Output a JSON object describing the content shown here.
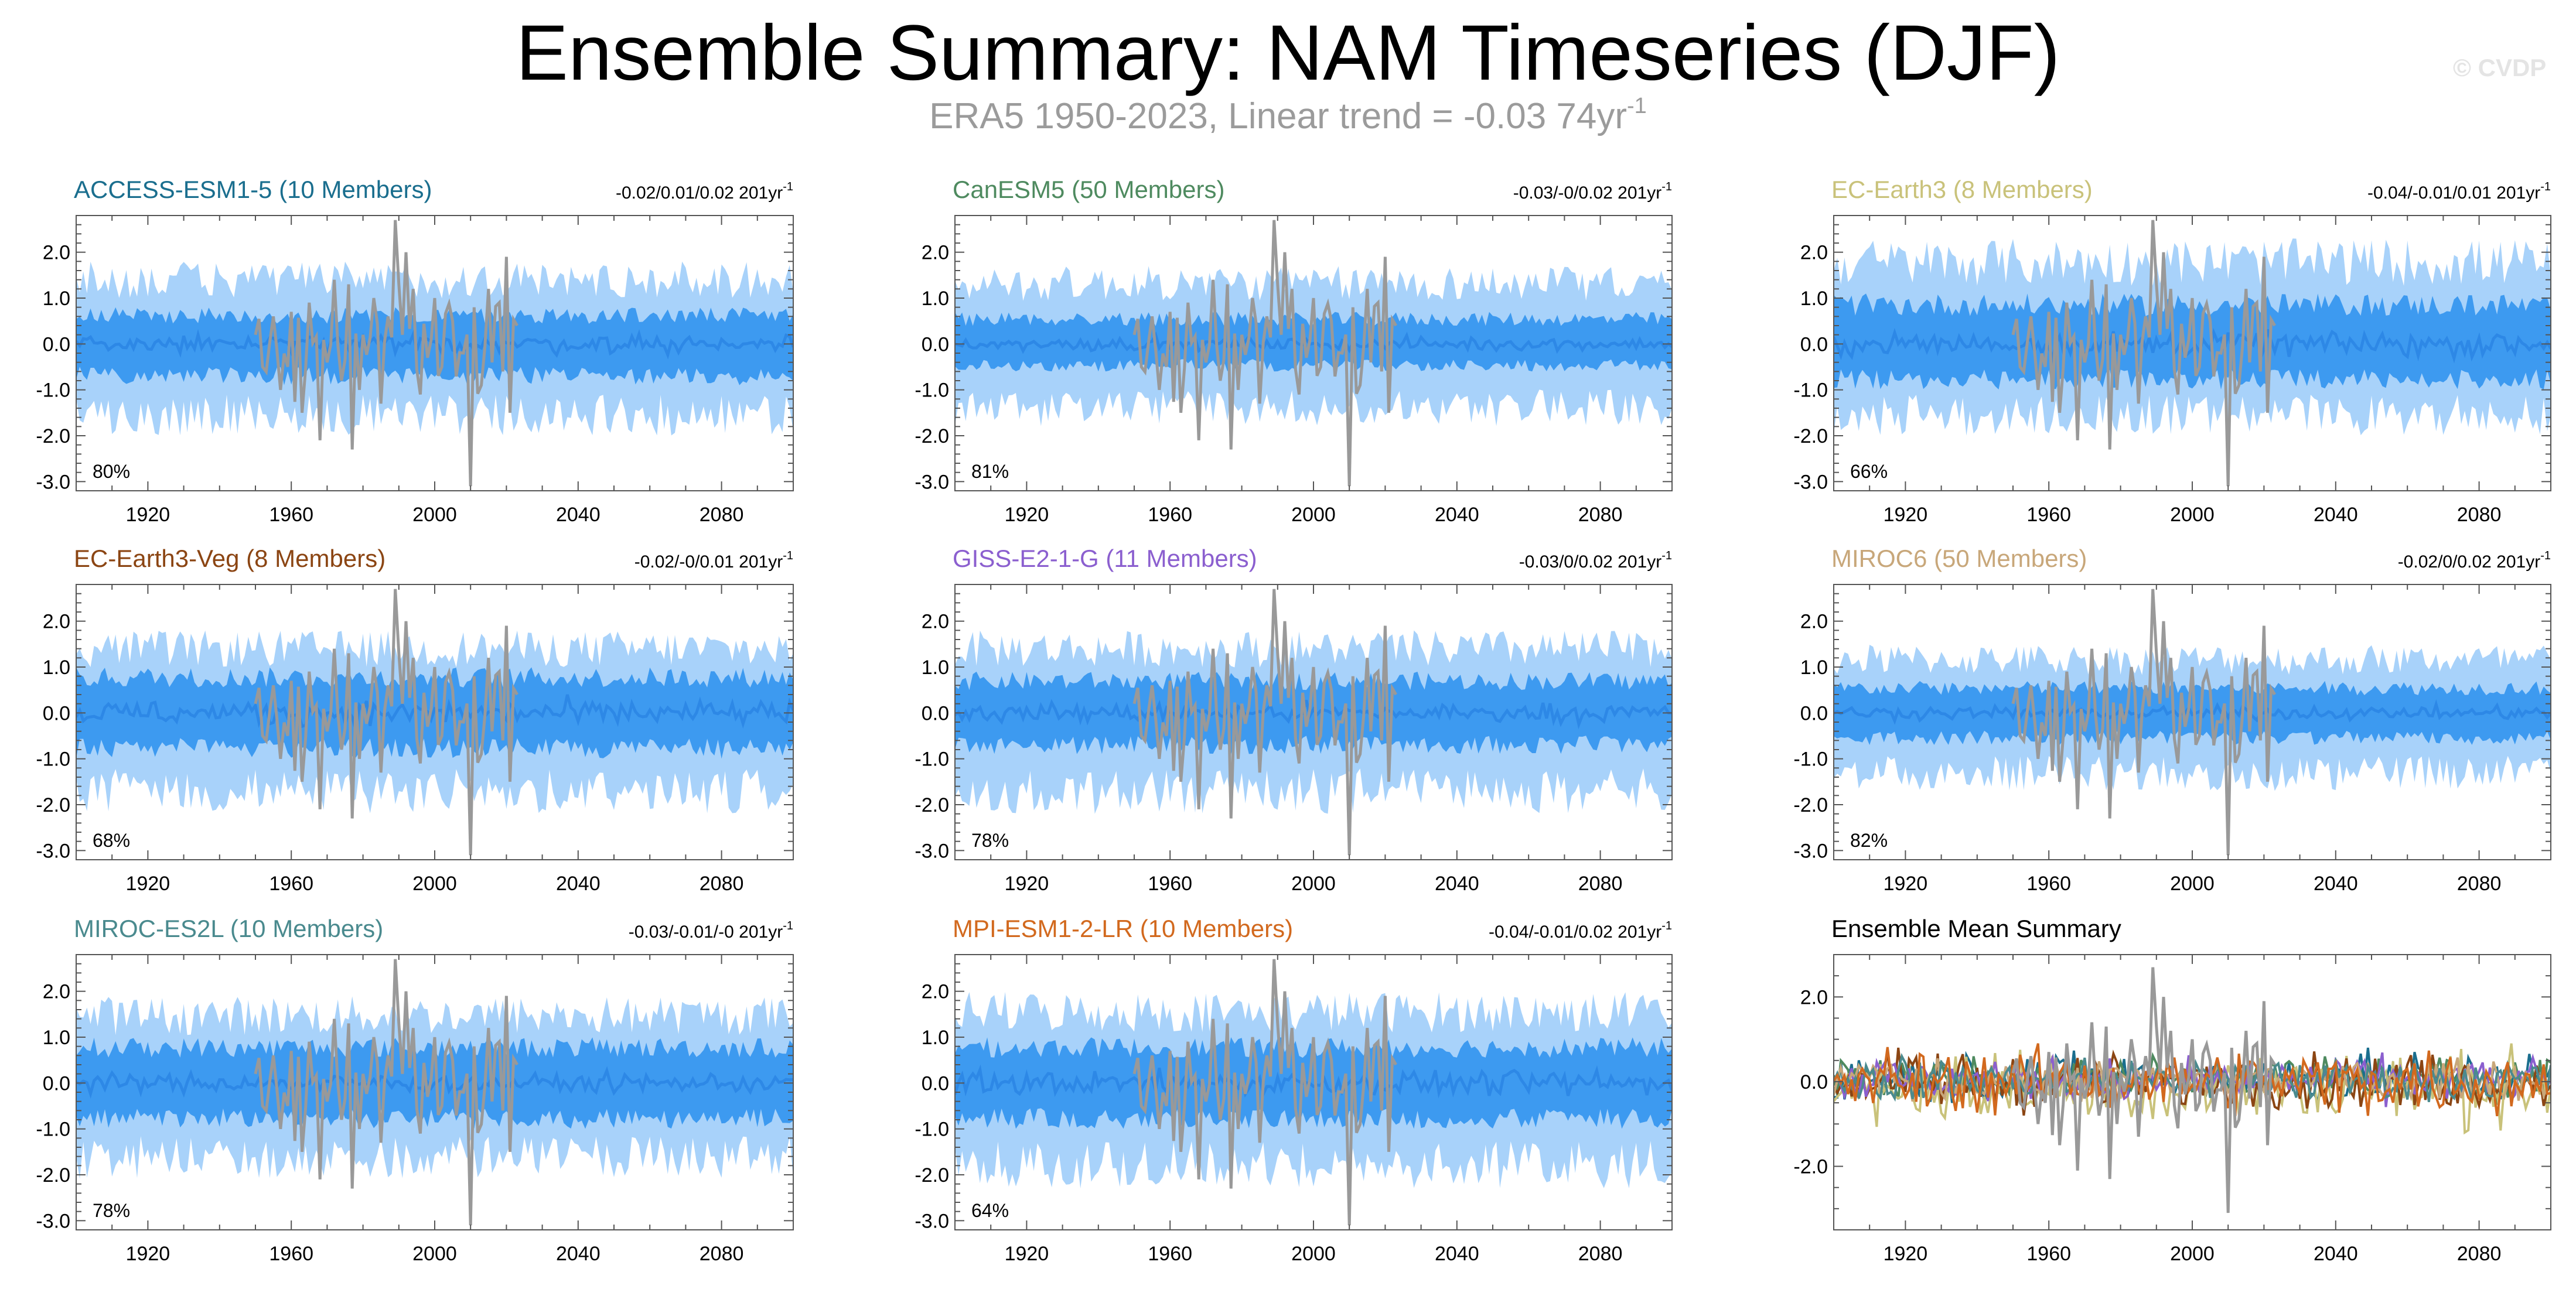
{
  "header": {
    "title": "Ensemble Summary: NAM Timeseries (DJF)",
    "subtitle_main": "ERA5 1950-2023, Linear trend = -0.03 74yr",
    "subtitle_sup": "-1",
    "watermark": "© CVDP"
  },
  "colors": {
    "outer_band": "#a8d2fa",
    "inner_band": "#3d9af0",
    "ensemble_mean_line": "#2d88e6",
    "observations": "#999999"
  },
  "chart_data": [
    {
      "type": "area",
      "title": "ACCESS-ESM1-5 (10 Members)",
      "title_color": "#1a6e8e",
      "trend_text": "-0.02/0.01/0.02 201yr",
      "trend_sup": "-1",
      "percent_label": "80%",
      "xlim": [
        1900,
        2100
      ],
      "ylim": [
        -3.2,
        2.8
      ],
      "x_ticks": [
        1920,
        1960,
        2000,
        2040,
        2080
      ],
      "y_ticks": [
        2.0,
        1.0,
        0.0,
        -1.0,
        -2.0,
        -3.0
      ],
      "y_tick_labels": [
        "2.0",
        "1.0",
        "0.0",
        "-1.0",
        "-2.0",
        "-3.0"
      ],
      "series": [
        {
          "name": "",
          "role": "percentile_range_outer",
          "x_range": [
            1900,
            2100
          ],
          "y_range": [
            -2.0,
            1.8
          ]
        },
        {
          "name": "",
          "role": "percentile_range_inner",
          "x_range": [
            1900,
            2100
          ],
          "y_range": [
            -0.9,
            0.8
          ]
        },
        {
          "name": "",
          "role": "ensemble_mean",
          "x_range": [
            1900,
            2100
          ],
          "y_range": [
            -0.3,
            0.3
          ]
        },
        {
          "name": "",
          "role": "observations",
          "x_range": [
            1950,
            2023
          ],
          "y_range": [
            -3.1,
            2.7
          ]
        }
      ]
    },
    {
      "type": "area",
      "title": "CanESM5 (50 Members)",
      "title_color": "#4e8a5f",
      "trend_text": "-0.03/-0/0.02 201yr",
      "trend_sup": "-1",
      "percent_label": "81%",
      "xlim": [
        1900,
        2100
      ],
      "ylim": [
        -3.2,
        2.8
      ],
      "x_ticks": [
        1920,
        1960,
        2000,
        2040,
        2080
      ],
      "y_ticks": [
        2.0,
        1.0,
        0.0,
        -1.0,
        -2.0,
        -3.0
      ],
      "y_tick_labels": [
        "2.0",
        "1.0",
        "0.0",
        "-1.0",
        "-2.0",
        "-3.0"
      ],
      "series": [
        {
          "name": "",
          "role": "percentile_range_outer",
          "x_range": [
            1900,
            2100
          ],
          "y_range": [
            -1.8,
            1.7
          ]
        },
        {
          "name": "",
          "role": "percentile_range_inner",
          "x_range": [
            1900,
            2100
          ],
          "y_range": [
            -0.6,
            0.7
          ]
        },
        {
          "name": "",
          "role": "ensemble_mean",
          "x_range": [
            1900,
            2100
          ],
          "y_range": [
            -0.2,
            0.2
          ]
        },
        {
          "name": "",
          "role": "observations",
          "x_range": [
            1950,
            2023
          ],
          "y_range": [
            -3.1,
            2.7
          ]
        }
      ]
    },
    {
      "type": "area",
      "title": "EC-Earth3 (8 Members)",
      "title_color": "#c9c27a",
      "trend_text": "-0.04/-0.01/0.01 201yr",
      "trend_sup": "-1",
      "percent_label": "66%",
      "xlim": [
        1900,
        2100
      ],
      "ylim": [
        -3.2,
        2.8
      ],
      "x_ticks": [
        1920,
        1960,
        2000,
        2040,
        2080
      ],
      "y_ticks": [
        2.0,
        1.0,
        0.0,
        -1.0,
        -2.0,
        -3.0
      ],
      "y_tick_labels": [
        "2.0",
        "1.0",
        "0.0",
        "-1.0",
        "-2.0",
        "-3.0"
      ],
      "series": [
        {
          "name": "",
          "role": "percentile_range_outer",
          "x_range": [
            1900,
            2100
          ],
          "y_range": [
            -2.0,
            2.3
          ]
        },
        {
          "name": "",
          "role": "percentile_range_inner",
          "x_range": [
            1900,
            2100
          ],
          "y_range": [
            -1.0,
            1.1
          ]
        },
        {
          "name": "",
          "role": "ensemble_mean",
          "x_range": [
            1900,
            2100
          ],
          "y_range": [
            -0.4,
            0.4
          ]
        },
        {
          "name": "",
          "role": "observations",
          "x_range": [
            1950,
            2023
          ],
          "y_range": [
            -3.1,
            2.7
          ]
        }
      ]
    },
    {
      "type": "area",
      "title": "EC-Earth3-Veg (8 Members)",
      "title_color": "#8b4513",
      "trend_text": "-0.02/-0/0.01 201yr",
      "trend_sup": "-1",
      "percent_label": "68%",
      "xlim": [
        1900,
        2100
      ],
      "ylim": [
        -3.2,
        2.8
      ],
      "x_ticks": [
        1920,
        1960,
        2000,
        2040,
        2080
      ],
      "y_ticks": [
        2.0,
        1.0,
        0.0,
        -1.0,
        -2.0,
        -3.0
      ],
      "y_tick_labels": [
        "2.0",
        "1.0",
        "0.0",
        "-1.0",
        "-2.0",
        "-3.0"
      ],
      "series": [
        {
          "name": "",
          "role": "percentile_range_outer",
          "x_range": [
            1900,
            2100
          ],
          "y_range": [
            -2.2,
            1.8
          ]
        },
        {
          "name": "",
          "role": "percentile_range_inner",
          "x_range": [
            1900,
            2100
          ],
          "y_range": [
            -1.0,
            1.0
          ]
        },
        {
          "name": "",
          "role": "ensemble_mean",
          "x_range": [
            1900,
            2100
          ],
          "y_range": [
            -0.4,
            0.4
          ]
        },
        {
          "name": "",
          "role": "observations",
          "x_range": [
            1950,
            2023
          ],
          "y_range": [
            -3.1,
            2.7
          ]
        }
      ]
    },
    {
      "type": "area",
      "title": "GISS-E2-1-G (11 Members)",
      "title_color": "#8b5fcf",
      "trend_text": "-0.03/0/0.02 201yr",
      "trend_sup": "-1",
      "percent_label": "78%",
      "xlim": [
        1900,
        2100
      ],
      "ylim": [
        -3.2,
        2.8
      ],
      "x_ticks": [
        1920,
        1960,
        2000,
        2040,
        2080
      ],
      "y_ticks": [
        2.0,
        1.0,
        0.0,
        -1.0,
        -2.0,
        -3.0
      ],
      "y_tick_labels": [
        "2.0",
        "1.0",
        "0.0",
        "-1.0",
        "-2.0",
        "-3.0"
      ],
      "series": [
        {
          "name": "",
          "role": "percentile_range_outer",
          "x_range": [
            1900,
            2100
          ],
          "y_range": [
            -2.2,
            1.8
          ]
        },
        {
          "name": "",
          "role": "percentile_range_inner",
          "x_range": [
            1900,
            2100
          ],
          "y_range": [
            -0.9,
            0.9
          ]
        },
        {
          "name": "",
          "role": "ensemble_mean",
          "x_range": [
            1900,
            2100
          ],
          "y_range": [
            -0.3,
            0.3
          ]
        },
        {
          "name": "",
          "role": "observations",
          "x_range": [
            1950,
            2023
          ],
          "y_range": [
            -3.1,
            2.7
          ]
        }
      ]
    },
    {
      "type": "area",
      "title": "MIROC6 (50 Members)",
      "title_color": "#c8a77a",
      "trend_text": "-0.02/0/0.02 201yr",
      "trend_sup": "-1",
      "percent_label": "82%",
      "xlim": [
        1900,
        2100
      ],
      "ylim": [
        -3.2,
        2.8
      ],
      "x_ticks": [
        1920,
        1960,
        2000,
        2040,
        2080
      ],
      "y_ticks": [
        2.0,
        1.0,
        0.0,
        -1.0,
        -2.0,
        -3.0
      ],
      "y_tick_labels": [
        "2.0",
        "1.0",
        "0.0",
        "-1.0",
        "-2.0",
        "-3.0"
      ],
      "series": [
        {
          "name": "",
          "role": "percentile_range_outer",
          "x_range": [
            1900,
            2100
          ],
          "y_range": [
            -1.7,
            1.5
          ]
        },
        {
          "name": "",
          "role": "percentile_range_inner",
          "x_range": [
            1900,
            2100
          ],
          "y_range": [
            -0.7,
            0.7
          ]
        },
        {
          "name": "",
          "role": "ensemble_mean",
          "x_range": [
            1900,
            2100
          ],
          "y_range": [
            -0.2,
            0.2
          ]
        },
        {
          "name": "",
          "role": "observations",
          "x_range": [
            1950,
            2023
          ],
          "y_range": [
            -3.1,
            2.7
          ]
        }
      ]
    },
    {
      "type": "area",
      "title": "MIROC-ES2L (10 Members)",
      "title_color": "#4a8a8e",
      "trend_text": "-0.03/-0.01/-0 201yr",
      "trend_sup": "-1",
      "percent_label": "78%",
      "xlim": [
        1900,
        2100
      ],
      "ylim": [
        -3.2,
        2.8
      ],
      "x_ticks": [
        1920,
        1960,
        2000,
        2040,
        2080
      ],
      "y_ticks": [
        2.0,
        1.0,
        0.0,
        -1.0,
        -2.0,
        -3.0
      ],
      "y_tick_labels": [
        "2.0",
        "1.0",
        "0.0",
        "-1.0",
        "-2.0",
        "-3.0"
      ],
      "series": [
        {
          "name": "",
          "role": "percentile_range_outer",
          "x_range": [
            1900,
            2100
          ],
          "y_range": [
            -2.1,
            1.9
          ]
        },
        {
          "name": "",
          "role": "percentile_range_inner",
          "x_range": [
            1900,
            2100
          ],
          "y_range": [
            -1.0,
            1.0
          ]
        },
        {
          "name": "",
          "role": "ensemble_mean",
          "x_range": [
            1900,
            2100
          ],
          "y_range": [
            -0.3,
            0.3
          ]
        },
        {
          "name": "",
          "role": "observations",
          "x_range": [
            1950,
            2023
          ],
          "y_range": [
            -3.1,
            2.7
          ]
        }
      ]
    },
    {
      "type": "area",
      "title": "MPI-ESM1-2-LR (10 Members)",
      "title_color": "#d2691e",
      "trend_text": "-0.04/-0.01/0.02 201yr",
      "trend_sup": "-1",
      "percent_label": "64%",
      "xlim": [
        1900,
        2100
      ],
      "ylim": [
        -3.2,
        2.8
      ],
      "x_ticks": [
        1920,
        1960,
        2000,
        2040,
        2080
      ],
      "y_ticks": [
        2.0,
        1.0,
        0.0,
        -1.0,
        -2.0,
        -3.0
      ],
      "y_tick_labels": [
        "2.0",
        "1.0",
        "0.0",
        "-1.0",
        "-2.0",
        "-3.0"
      ],
      "series": [
        {
          "name": "",
          "role": "percentile_range_outer",
          "x_range": [
            1900,
            2100
          ],
          "y_range": [
            -2.3,
            2.0
          ]
        },
        {
          "name": "",
          "role": "percentile_range_inner",
          "x_range": [
            1900,
            2100
          ],
          "y_range": [
            -1.0,
            1.0
          ]
        },
        {
          "name": "",
          "role": "ensemble_mean",
          "x_range": [
            1900,
            2100
          ],
          "y_range": [
            -0.4,
            0.4
          ]
        },
        {
          "name": "",
          "role": "observations",
          "x_range": [
            1950,
            2023
          ],
          "y_range": [
            -3.1,
            2.7
          ]
        }
      ]
    },
    {
      "type": "line",
      "title": "Ensemble Mean Summary",
      "title_color": "#000000",
      "trend_text": "",
      "trend_sup": "",
      "percent_label": "",
      "xlim": [
        1900,
        2100
      ],
      "ylim": [
        -3.5,
        3.0
      ],
      "x_ticks": [
        1920,
        1960,
        2000,
        2040,
        2080
      ],
      "y_ticks": [
        2.0,
        0.0,
        -2.0
      ],
      "y_tick_labels": [
        "2.0",
        "0.0",
        "-2.0"
      ],
      "series": [
        {
          "name": "",
          "role": "ensemble_mean",
          "color": "#1a6e8e",
          "x_range": [
            1900,
            2100
          ],
          "y_range": [
            -0.6,
            0.8
          ]
        },
        {
          "name": "",
          "role": "ensemble_mean",
          "color": "#4e8a5f",
          "x_range": [
            1900,
            2100
          ],
          "y_range": [
            -0.5,
            0.7
          ]
        },
        {
          "name": "",
          "role": "ensemble_mean",
          "color": "#c9c27a",
          "x_range": [
            1900,
            2100
          ],
          "y_range": [
            -1.2,
            0.9
          ]
        },
        {
          "name": "",
          "role": "ensemble_mean",
          "color": "#8b4513",
          "x_range": [
            1900,
            2100
          ],
          "y_range": [
            -0.8,
            0.8
          ]
        },
        {
          "name": "",
          "role": "ensemble_mean",
          "color": "#8b5fcf",
          "x_range": [
            1900,
            2100
          ],
          "y_range": [
            -0.6,
            0.7
          ]
        },
        {
          "name": "",
          "role": "ensemble_mean",
          "color": "#c8a77a",
          "x_range": [
            1900,
            2100
          ],
          "y_range": [
            -0.5,
            0.6
          ]
        },
        {
          "name": "",
          "role": "ensemble_mean",
          "color": "#4a8a8e",
          "x_range": [
            1900,
            2100
          ],
          "y_range": [
            -0.6,
            0.7
          ]
        },
        {
          "name": "",
          "role": "ensemble_mean",
          "color": "#d2691e",
          "x_range": [
            1900,
            2100
          ],
          "y_range": [
            -0.9,
            0.9
          ]
        },
        {
          "name": "",
          "role": "observations",
          "color": "#999999",
          "x_range": [
            1950,
            2023
          ],
          "y_range": [
            -3.1,
            2.7
          ]
        }
      ]
    }
  ]
}
